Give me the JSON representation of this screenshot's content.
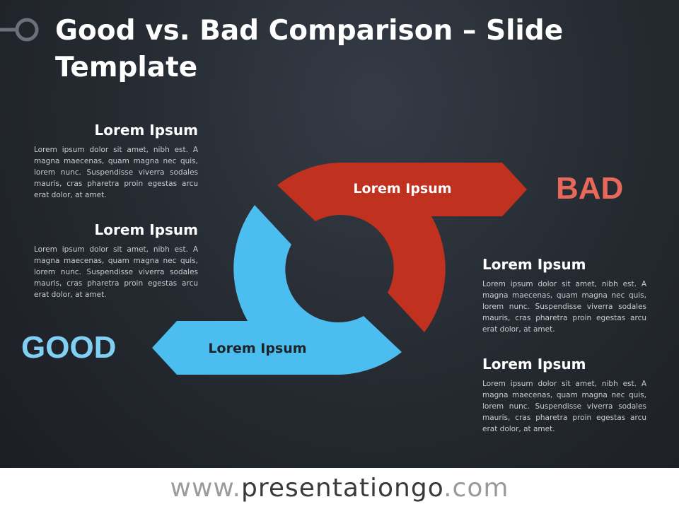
{
  "header": {
    "title": "Good vs. Bad Comparison – Slide Template"
  },
  "diagram": {
    "bad": {
      "label": "BAD",
      "arrow_text": "Lorem Ipsum"
    },
    "good": {
      "label": "GOOD",
      "arrow_text": "Lorem Ipsum"
    }
  },
  "text_blocks": [
    {
      "heading": "Lorem Ipsum",
      "body": "Lorem ipsum dolor sit amet, nibh est. A magna maecenas, quam magna nec quis, lorem nunc. Suspendisse viverra sodales mauris, cras pharetra proin egestas arcu erat dolor, at amet."
    },
    {
      "heading": "Lorem Ipsum",
      "body": "Lorem ipsum dolor sit amet, nibh est. A magna maecenas, quam magna nec quis, lorem nunc. Suspendisse viverra sodales mauris, cras pharetra proin egestas arcu erat dolor, at amet."
    },
    {
      "heading": "Lorem Ipsum",
      "body": "Lorem ipsum dolor sit amet, nibh est. A magna maecenas, quam magna nec quis, lorem nunc. Suspendisse viverra sodales mauris, cras pharetra proin egestas arcu erat dolor, at amet."
    },
    {
      "heading": "Lorem Ipsum",
      "body": "Lorem ipsum dolor sit amet, nibh est. A magna maecenas, quam magna nec quis, lorem nunc. Suspendisse viverra sodales mauris, cras pharetra proin egestas arcu erat dolor, at amet."
    }
  ],
  "footer": {
    "prefix": "www.",
    "brand": "presentationgo",
    "suffix": ".com"
  }
}
